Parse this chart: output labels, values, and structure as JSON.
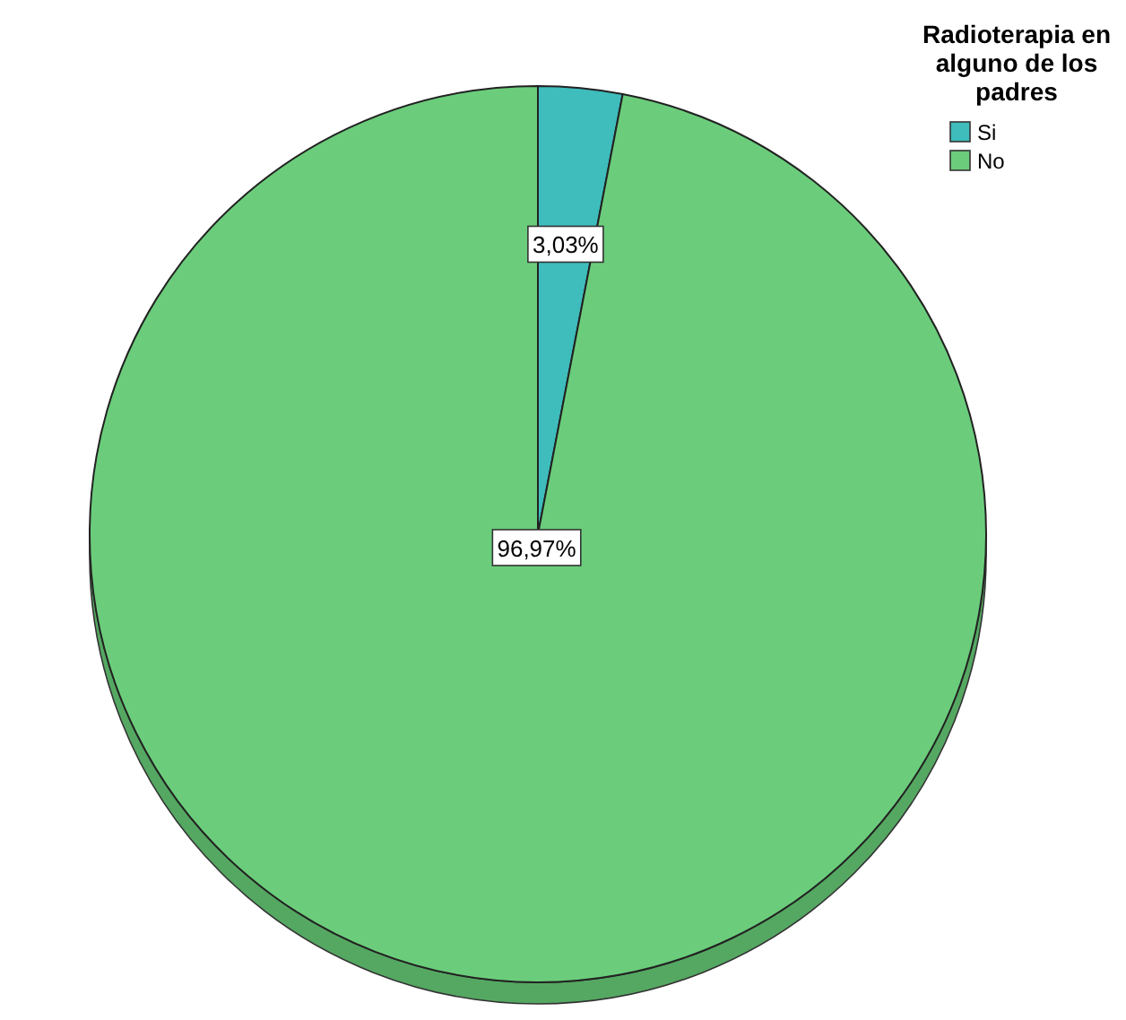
{
  "chart_data": {
    "type": "pie",
    "legend_title": "Radioterapia en alguno de los padres",
    "categories": [
      "Si",
      "No"
    ],
    "values": [
      3.03,
      96.97
    ],
    "colors": [
      "#3fbcbc",
      "#6bcd7b"
    ],
    "value_labels": [
      "3,03%",
      "96,97%"
    ],
    "legend": "top right"
  }
}
